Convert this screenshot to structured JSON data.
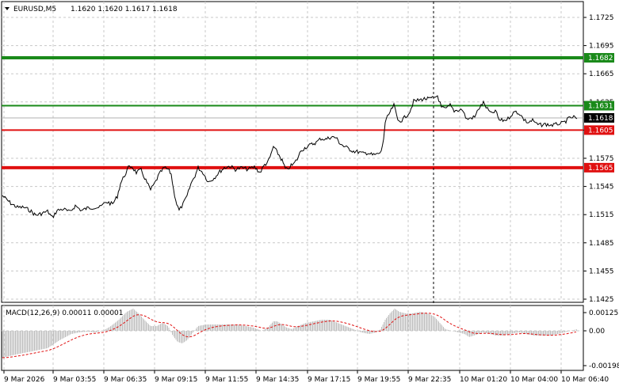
{
  "header": {
    "symbol_tf": "EURUSD,M5",
    "ohlc": "1.1620 1.1620 1.1617 1.1618"
  },
  "price_axis": {
    "ticks": [
      "1.1725",
      "1.1695",
      "1.1665",
      "1.1635",
      "1.1605",
      "1.1575",
      "1.1545",
      "1.1515",
      "1.1485",
      "1.1455",
      "1.1425"
    ]
  },
  "levels": [
    {
      "label": "1.1682",
      "price": 1.1682,
      "color": "#1a8a1a",
      "thick": true
    },
    {
      "label": "1.1631",
      "price": 1.1631,
      "color": "#1a8a1a",
      "thick": false
    },
    {
      "label": "1.1605",
      "price": 1.1605,
      "color": "#e01010",
      "thick": false
    },
    {
      "label": "1.1565",
      "price": 1.1565,
      "color": "#e01010",
      "thick": true
    }
  ],
  "current_price": {
    "label": "1.1618",
    "price": 1.1618
  },
  "time_axis": {
    "labels": [
      "9 Mar 2026",
      "9 Mar 03:55",
      "9 Mar 06:35",
      "9 Mar 09:15",
      "9 Mar 11:55",
      "9 Mar 14:35",
      "9 Mar 17:15",
      "9 Mar 19:55",
      "9 Mar 22:35",
      "10 Mar 01:20",
      "10 Mar 04:00",
      "10 Mar 06:40"
    ]
  },
  "macd": {
    "label": "MACD(12,26,9) 0.00011 0.00001",
    "ticks": [
      "0.00125",
      "0.00",
      "-0.00198"
    ],
    "histogram_color": "#c0c0c0",
    "signal_color": "#e01010"
  },
  "colors": {
    "grid": "#c8c8c8",
    "crosshair": "#000000",
    "price_line": "#000000"
  }
}
